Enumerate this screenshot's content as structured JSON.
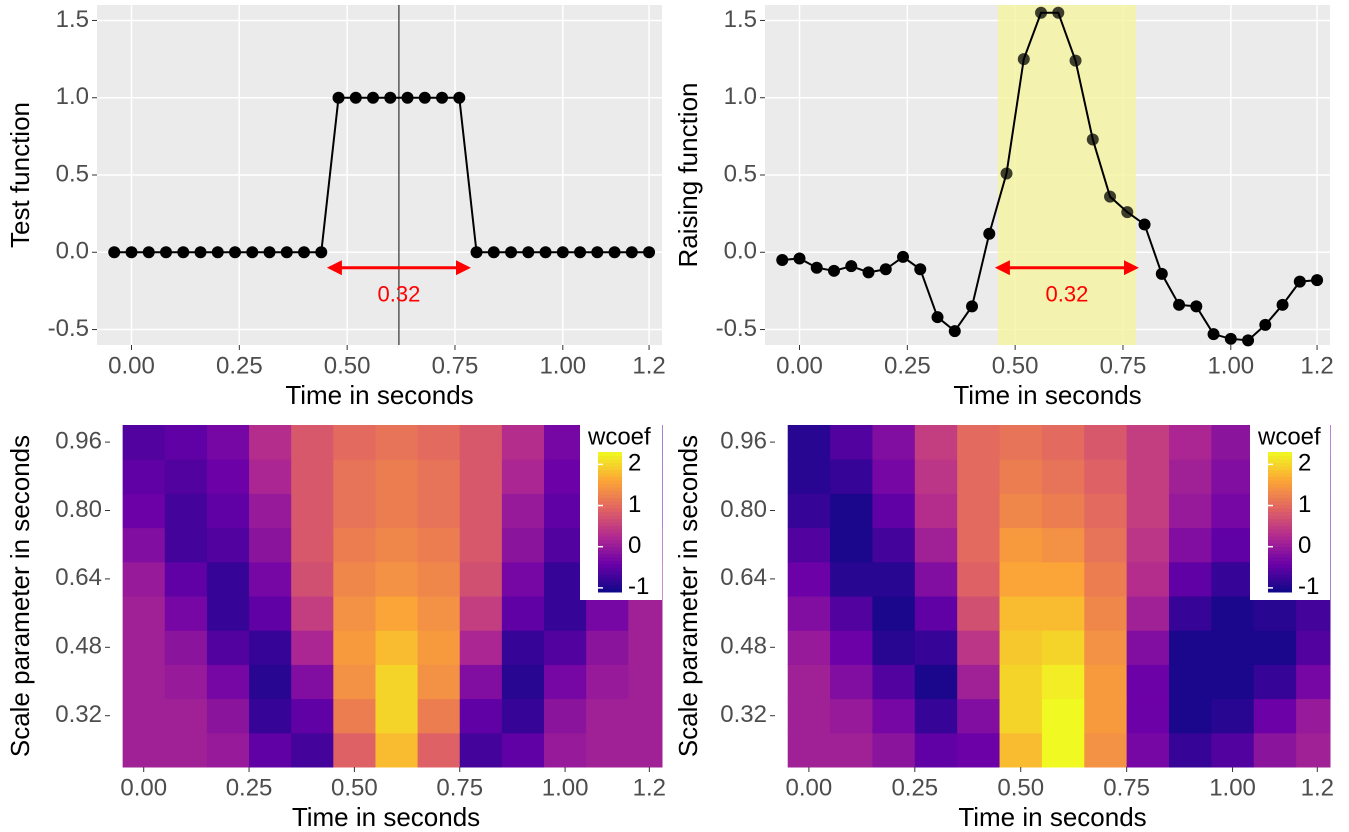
{
  "chart_data": [
    {
      "type": "line",
      "xlabel": "Time in seconds",
      "ylabel": "Test function",
      "color": "#000000",
      "background": "#ebebeb",
      "grid": true,
      "x": [
        -0.04,
        0,
        0.04,
        0.08,
        0.12,
        0.16,
        0.2,
        0.24,
        0.28,
        0.32,
        0.36,
        0.4,
        0.44,
        0.48,
        0.52,
        0.56,
        0.6,
        0.64,
        0.68,
        0.72,
        0.76,
        0.8,
        0.84,
        0.88,
        0.92,
        0.96,
        1,
        1.04,
        1.08,
        1.12,
        1.16,
        1.2
      ],
      "values": [
        0,
        0,
        0,
        0,
        0,
        0,
        0,
        0,
        0,
        0,
        0,
        0,
        0,
        1,
        1,
        1,
        1,
        1,
        1,
        1,
        1,
        0,
        0,
        0,
        0,
        0,
        0,
        0,
        0,
        0,
        0,
        0
      ],
      "xlim": [
        -0.08,
        1.23
      ],
      "ylim": [
        -0.6,
        1.6
      ],
      "xticks": [
        {
          "value": 0,
          "label": "0.00"
        },
        0.25,
        {
          "value": 0.5,
          "label": "0.50"
        },
        0.75,
        {
          "value": 1,
          "label": "1.00"
        },
        1.2
      ],
      "yticks": [
        -0.5,
        {
          "value": 0,
          "label": "0.0"
        },
        0.5,
        {
          "value": 1,
          "label": "1.0"
        },
        1.5
      ],
      "vline": 0.62,
      "annotation": {
        "text": "0.32",
        "x": [
          0.46,
          0.78
        ],
        "y": -0.1,
        "color": "#ff0000"
      }
    },
    {
      "type": "line",
      "xlabel": "Time in seconds",
      "ylabel": "Raising function",
      "color": "#000000",
      "background": "#ebebeb",
      "grid": true,
      "x": [
        -0.04,
        0,
        0.04,
        0.08,
        0.12,
        0.16,
        0.2,
        0.24,
        0.28,
        0.32,
        0.36,
        0.4,
        0.44,
        0.48,
        0.52,
        0.56,
        0.6,
        0.64,
        0.68,
        0.72,
        0.76,
        0.8,
        0.84,
        0.88,
        0.92,
        0.96,
        1,
        1.04,
        1.08,
        1.12,
        1.16,
        1.2
      ],
      "values": [
        -0.05,
        -0.04,
        -0.1,
        -0.12,
        -0.09,
        -0.13,
        -0.11,
        -0.03,
        -0.11,
        -0.42,
        -0.51,
        -0.35,
        0.12,
        0.51,
        1.25,
        1.55,
        1.55,
        1.24,
        0.73,
        0.36,
        0.26,
        0.18,
        -0.14,
        -0.34,
        -0.35,
        -0.53,
        -0.56,
        -0.57,
        -0.47,
        -0.34,
        -0.19,
        -0.18
      ],
      "xlim": [
        -0.08,
        1.23
      ],
      "ylim": [
        -0.6,
        1.6
      ],
      "xticks": [
        {
          "value": 0,
          "label": "0.00"
        },
        0.25,
        {
          "value": 0.5,
          "label": "0.50"
        },
        0.75,
        {
          "value": 1,
          "label": "1.00"
        },
        1.2
      ],
      "yticks": [
        -0.5,
        {
          "value": 0,
          "label": "0.0"
        },
        0.5,
        {
          "value": 1,
          "label": "1.0"
        },
        1.5
      ],
      "highlight": {
        "x": [
          0.46,
          0.78
        ],
        "color": "#f5f5a0"
      },
      "annotation": {
        "text": "0.32",
        "x": [
          0.46,
          0.78
        ],
        "y": -0.1,
        "color": "#ff0000"
      }
    },
    {
      "type": "heatmap",
      "xlabel": "Time in seconds",
      "ylabel": "Scale parameter in seconds",
      "legend_title": "wcoef",
      "x": [
        0,
        0.1,
        0.2,
        0.3,
        0.4,
        0.5,
        0.6,
        0.7,
        0.8,
        0.9,
        1,
        1.1,
        1.2
      ],
      "y": [
        0.24,
        0.32,
        0.4,
        0.48,
        0.56,
        0.64,
        0.72,
        0.8,
        0.88,
        0.96
      ],
      "z": [
        [
          0.1,
          0.1,
          0,
          -0.5,
          -0.7,
          0.9,
          1.8,
          0.9,
          -0.7,
          -0.5,
          0,
          0.1,
          0.1
        ],
        [
          0.1,
          0.1,
          -0.1,
          -0.8,
          -0.5,
          1.2,
          2,
          1.2,
          -0.5,
          -0.8,
          -0.1,
          0.1,
          0.1
        ],
        [
          0.1,
          0,
          -0.3,
          -0.9,
          -0.2,
          1.4,
          2,
          1.4,
          -0.2,
          -0.9,
          -0.3,
          0,
          0.1
        ],
        [
          0.1,
          -0.1,
          -0.6,
          -0.8,
          0.2,
          1.5,
          1.8,
          1.5,
          0.2,
          -0.8,
          -0.6,
          -0.1,
          0.1
        ],
        [
          0.1,
          -0.3,
          -0.8,
          -0.5,
          0.5,
          1.4,
          1.6,
          1.4,
          0.5,
          -0.5,
          -0.8,
          -0.3,
          0.1
        ],
        [
          0,
          -0.5,
          -0.8,
          -0.3,
          0.7,
          1.3,
          1.4,
          1.3,
          0.7,
          -0.3,
          -0.8,
          -0.5,
          0
        ],
        [
          -0.2,
          -0.7,
          -0.6,
          -0.1,
          0.8,
          1.2,
          1.3,
          1.2,
          0.8,
          -0.1,
          -0.6,
          -0.7,
          -0.2
        ],
        [
          -0.4,
          -0.7,
          -0.5,
          0,
          0.8,
          1.1,
          1.2,
          1.1,
          0.8,
          0,
          -0.5,
          -0.7,
          -0.4
        ],
        [
          -0.5,
          -0.6,
          -0.4,
          0.2,
          0.8,
          1.1,
          1.2,
          1.1,
          0.8,
          0.2,
          -0.4,
          -0.6,
          -0.5
        ],
        [
          -0.6,
          -0.5,
          -0.3,
          0.3,
          0.8,
          1,
          1.1,
          1,
          0.8,
          0.3,
          -0.3,
          -0.5,
          -0.6
        ]
      ],
      "xlim": [
        -0.08,
        1.23
      ],
      "ylim": [
        0.2,
        1.0
      ],
      "clim": [
        -1.1,
        2.3
      ],
      "colors": [
        "#0d0887",
        "#6a00a8",
        "#b12a90",
        "#e16462",
        "#fca636",
        "#f0f921"
      ],
      "xticks": [
        {
          "value": 0,
          "label": "0.00"
        },
        0.25,
        {
          "value": 0.5,
          "label": "0.50"
        },
        0.75,
        {
          "value": 1,
          "label": "1.00"
        },
        1.2
      ],
      "yticks": [
        0.32,
        0.48,
        0.64,
        {
          "value": 0.8,
          "label": "0.80"
        },
        0.96
      ],
      "cticks": [
        -1,
        0,
        1,
        2
      ]
    },
    {
      "type": "heatmap",
      "xlabel": "Time in seconds",
      "ylabel": "Scale parameter in seconds",
      "legend_title": "wcoef",
      "x": [
        0,
        0.1,
        0.2,
        0.3,
        0.4,
        0.5,
        0.6,
        0.7,
        0.8,
        0.9,
        1,
        1.1,
        1.2
      ],
      "y": [
        0.24,
        0.32,
        0.4,
        0.48,
        0.56,
        0.64,
        0.72,
        0.8,
        0.88,
        0.96
      ],
      "z": [
        [
          0.1,
          0.1,
          -0.1,
          -0.5,
          -0.4,
          1.8,
          2.3,
          1.4,
          -0.3,
          -0.8,
          -0.6,
          -0.1,
          0.1
        ],
        [
          0.1,
          0,
          -0.3,
          -0.8,
          -0.2,
          2,
          2.3,
          1.5,
          -0.4,
          -1,
          -0.9,
          -0.4,
          0
        ],
        [
          0.1,
          -0.2,
          -0.6,
          -1,
          0.1,
          2,
          2.2,
          1.5,
          -0.4,
          -1,
          -1,
          -0.8,
          -0.3
        ],
        [
          0,
          -0.4,
          -0.9,
          -0.8,
          0.4,
          1.9,
          2,
          1.4,
          -0.2,
          -1,
          -1,
          -1,
          -0.6
        ],
        [
          -0.2,
          -0.6,
          -1,
          -0.5,
          0.7,
          1.8,
          1.8,
          1.3,
          0.1,
          -0.8,
          -1,
          -0.9,
          -0.7
        ],
        [
          -0.4,
          -0.9,
          -0.9,
          -0.2,
          0.9,
          1.6,
          1.6,
          1.2,
          0.3,
          -0.5,
          -0.8,
          -0.7,
          -0.6
        ],
        [
          -0.6,
          -1,
          -0.7,
          0.1,
          1,
          1.5,
          1.4,
          1.1,
          0.4,
          -0.2,
          -0.5,
          -0.5,
          -0.5
        ],
        [
          -0.8,
          -1,
          -0.5,
          0.3,
          1,
          1.3,
          1.2,
          1,
          0.5,
          0,
          -0.3,
          -0.4,
          -0.5
        ],
        [
          -0.9,
          -0.8,
          -0.3,
          0.4,
          1,
          1.2,
          1.1,
          0.9,
          0.5,
          0.1,
          -0.2,
          -0.3,
          -0.4
        ],
        [
          -0.9,
          -0.6,
          -0.2,
          0.5,
          1,
          1.1,
          1,
          0.8,
          0.5,
          0.2,
          -0.1,
          -0.2,
          -0.3
        ]
      ],
      "xlim": [
        -0.08,
        1.23
      ],
      "ylim": [
        0.2,
        1.0
      ],
      "clim": [
        -1.1,
        2.3
      ],
      "colors": [
        "#0d0887",
        "#6a00a8",
        "#b12a90",
        "#e16462",
        "#fca636",
        "#f0f921"
      ],
      "xticks": [
        {
          "value": 0,
          "label": "0.00"
        },
        0.25,
        {
          "value": 0.5,
          "label": "0.50"
        },
        0.75,
        {
          "value": 1,
          "label": "1.00"
        },
        1.2
      ],
      "yticks": [
        0.32,
        0.48,
        0.64,
        {
          "value": 0.8,
          "label": "0.80"
        },
        0.96
      ],
      "cticks": [
        -1,
        0,
        1,
        2
      ]
    }
  ]
}
